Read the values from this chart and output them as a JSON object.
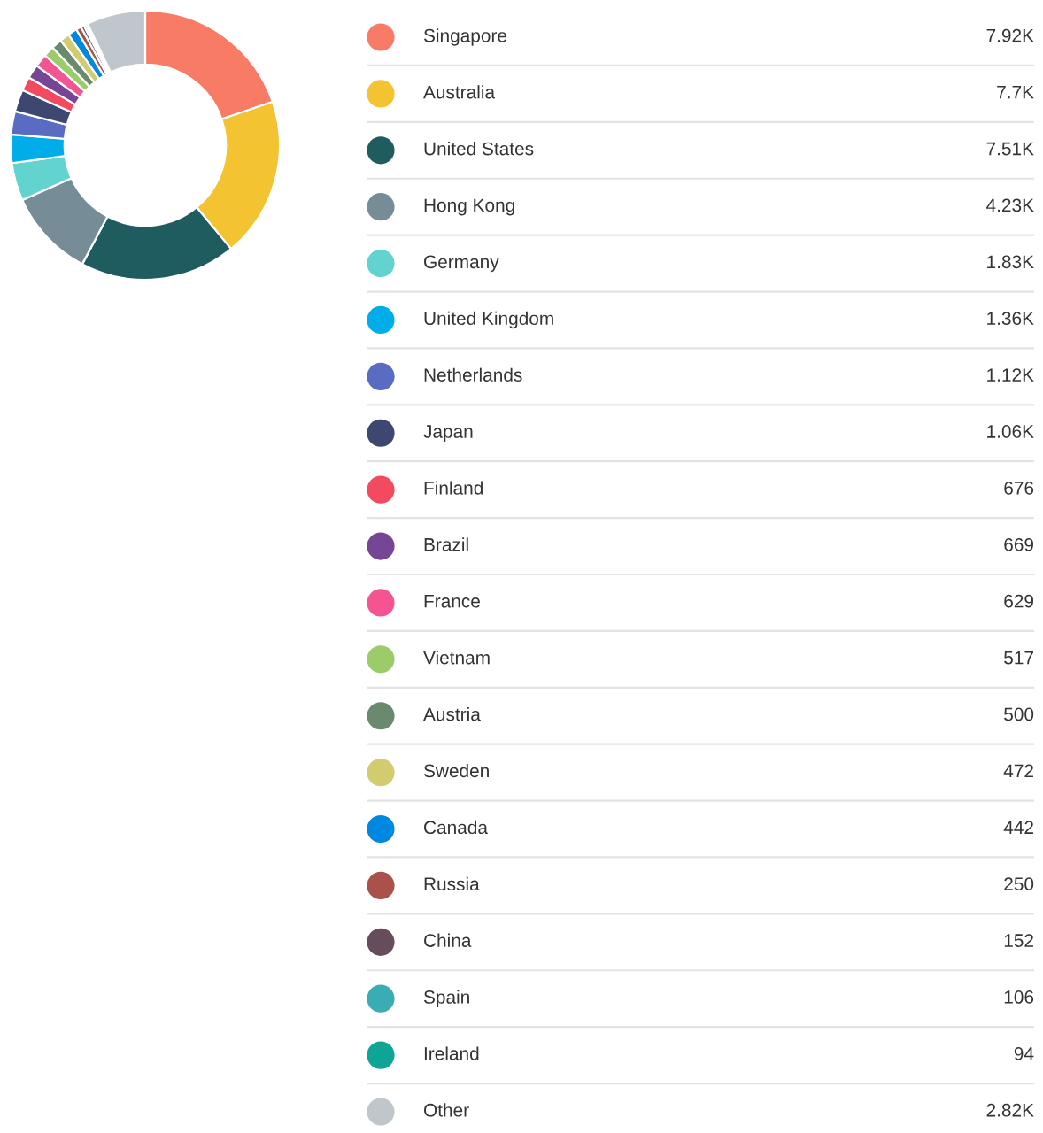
{
  "chart_data": {
    "type": "donut",
    "categories": [
      "Singapore",
      "Australia",
      "United States",
      "Hong Kong",
      "Germany",
      "United Kingdom",
      "Netherlands",
      "Japan",
      "Finland",
      "Brazil",
      "France",
      "Vietnam",
      "Austria",
      "Sweden",
      "Canada",
      "Russia",
      "China",
      "Spain",
      "Ireland",
      "Other"
    ],
    "values": [
      7920,
      7700,
      7510,
      4230,
      1830,
      1360,
      1120,
      1060,
      676,
      669,
      629,
      517,
      500,
      472,
      442,
      250,
      152,
      106,
      94,
      2820
    ],
    "value_labels": [
      "7.92K",
      "7.7K",
      "7.51K",
      "4.23K",
      "1.83K",
      "1.36K",
      "1.12K",
      "1.06K",
      "676",
      "669",
      "629",
      "517",
      "500",
      "472",
      "442",
      "250",
      "152",
      "106",
      "94",
      "2.82K"
    ],
    "colors": [
      "#f77b65",
      "#f3c332",
      "#1f5c5f",
      "#768d98",
      "#62d3ce",
      "#00ade8",
      "#5a6bc2",
      "#3e4770",
      "#f44a5f",
      "#774595",
      "#f45592",
      "#9ccb6a",
      "#6a8a70",
      "#d3cb70",
      "#0088e0",
      "#a9514a",
      "#664d5c",
      "#3aacb4",
      "#0ea597",
      "#bfc6cc"
    ],
    "legend": "right"
  }
}
